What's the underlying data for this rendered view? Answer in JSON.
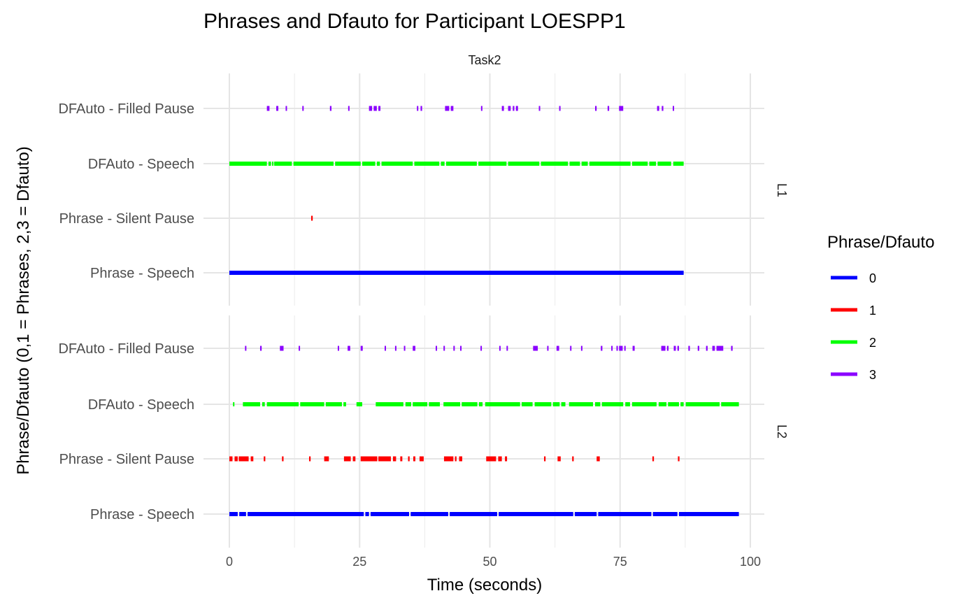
{
  "chart_data": {
    "type": "scatter",
    "title": "Phrases and Dfauto for Participant LOESPP1",
    "strip_label": "Task2",
    "xlabel": "Time (seconds)",
    "ylabel": "Phrase/Dfauto (0,1 = Phrases, 2,3 = Dfauto)",
    "xlim": [
      0,
      100
    ],
    "x_ticks": [
      0,
      25,
      50,
      75,
      100
    ],
    "categories": [
      "DFAuto - Filled Pause",
      "DFAuto - Speech",
      "Phrase - Silent Pause",
      "Phrase - Speech"
    ],
    "grid": true,
    "legend": {
      "title": "Phrase/Dfauto",
      "position": "right",
      "entries": [
        {
          "label": "0",
          "color": "#0000ff"
        },
        {
          "label": "1",
          "color": "#ff0000"
        },
        {
          "label": "2",
          "color": "#00ff00"
        },
        {
          "label": "3",
          "color": "#8b00ff"
        }
      ]
    },
    "facets": [
      {
        "label": "L1",
        "series": [
          {
            "category": "DFAuto - Filled Pause",
            "code": "3",
            "segments": [
              [
                7.2,
                7.7
              ],
              [
                9.0,
                9.4
              ],
              [
                10.8,
                11.0
              ],
              [
                14.0,
                14.2
              ],
              [
                19.3,
                19.6
              ],
              [
                22.8,
                23.0
              ],
              [
                26.8,
                27.4
              ],
              [
                27.7,
                28.3
              ],
              [
                28.6,
                29.0
              ],
              [
                36.0,
                36.2
              ],
              [
                36.7,
                37.0
              ],
              [
                41.4,
                42.2
              ],
              [
                42.5,
                43.0
              ],
              [
                48.3,
                48.5
              ],
              [
                52.3,
                52.7
              ],
              [
                53.5,
                54.0
              ],
              [
                54.4,
                54.7
              ],
              [
                55.0,
                55.4
              ],
              [
                59.4,
                59.6
              ],
              [
                63.3,
                63.5
              ],
              [
                70.2,
                70.5
              ],
              [
                72.6,
                72.9
              ],
              [
                74.8,
                75.6
              ],
              [
                82.1,
                82.5
              ],
              [
                83.0,
                83.3
              ],
              [
                85.1,
                85.3
              ]
            ]
          },
          {
            "category": "DFAuto - Speech",
            "code": "2",
            "segments": [
              [
                0,
                7.2
              ],
              [
                7.5,
                8.0
              ],
              [
                8.2,
                8.4
              ],
              [
                8.6,
                12.0
              ],
              [
                12.3,
                20.0
              ],
              [
                20.3,
                25.2
              ],
              [
                25.5,
                28.0
              ],
              [
                28.3,
                28.9
              ],
              [
                29.2,
                35.2
              ],
              [
                35.5,
                40.3
              ],
              [
                40.6,
                41.3
              ],
              [
                41.6,
                47.5
              ],
              [
                47.8,
                53.2
              ],
              [
                53.5,
                59.5
              ],
              [
                59.8,
                65.0
              ],
              [
                65.3,
                67.3
              ],
              [
                67.6,
                68.8
              ],
              [
                69.1,
                77.0
              ],
              [
                77.3,
                80.3
              ],
              [
                80.6,
                81.9
              ],
              [
                82.2,
                84.8
              ],
              [
                85.2,
                87.2
              ]
            ]
          },
          {
            "category": "Phrase - Silent Pause",
            "code": "1",
            "segments": [
              [
                15.7,
                16.0
              ]
            ]
          },
          {
            "category": "Phrase - Speech",
            "code": "0",
            "segments": [
              [
                0,
                87.2
              ]
            ]
          }
        ]
      },
      {
        "label": "L2",
        "series": [
          {
            "category": "DFAuto - Filled Pause",
            "code": "3",
            "segments": [
              [
                3.0,
                3.2
              ],
              [
                5.9,
                6.2
              ],
              [
                9.7,
                10.4
              ],
              [
                13.3,
                13.5
              ],
              [
                20.8,
                21.0
              ],
              [
                22.7,
                23.2
              ],
              [
                25.2,
                25.6
              ],
              [
                29.8,
                30.0
              ],
              [
                31.8,
                32.0
              ],
              [
                33.5,
                33.7
              ],
              [
                35.2,
                35.7
              ],
              [
                39.6,
                39.8
              ],
              [
                41.1,
                41.3
              ],
              [
                43.0,
                43.2
              ],
              [
                44.3,
                44.5
              ],
              [
                48.2,
                48.4
              ],
              [
                51.8,
                52.0
              ],
              [
                53.2,
                53.4
              ],
              [
                58.3,
                59.2
              ],
              [
                61.0,
                61.2
              ],
              [
                62.8,
                63.3
              ],
              [
                65.4,
                65.6
              ],
              [
                67.5,
                67.7
              ],
              [
                71.3,
                71.6
              ],
              [
                73.3,
                73.5
              ],
              [
                74.3,
                74.5
              ],
              [
                74.8,
                75.5
              ],
              [
                75.8,
                76.0
              ],
              [
                77.4,
                77.8
              ],
              [
                82.9,
                83.7
              ],
              [
                84.0,
                84.3
              ],
              [
                85.3,
                85.7
              ],
              [
                86.0,
                86.3
              ],
              [
                88.1,
                88.4
              ],
              [
                89.9,
                90.2
              ],
              [
                91.5,
                91.8
              ],
              [
                92.7,
                93.2
              ],
              [
                93.5,
                94.8
              ],
              [
                96.3,
                96.6
              ]
            ]
          },
          {
            "category": "DFAuto - Speech",
            "code": "2",
            "segments": [
              [
                0.7,
                0.9
              ],
              [
                2.6,
                5.9
              ],
              [
                6.3,
                6.8
              ],
              [
                7.2,
                13.3
              ],
              [
                13.6,
                18.2
              ],
              [
                18.5,
                21.6
              ],
              [
                21.9,
                22.4
              ],
              [
                24.4,
                25.5
              ],
              [
                28.1,
                33.4
              ],
              [
                33.8,
                34.9
              ],
              [
                35.2,
                38.0
              ],
              [
                38.3,
                40.4
              ],
              [
                41.1,
                44.3
              ],
              [
                44.6,
                47.6
              ],
              [
                47.9,
                48.6
              ],
              [
                49.1,
                55.8
              ],
              [
                56.1,
                58.2
              ],
              [
                58.6,
                61.8
              ],
              [
                62.1,
                63.4
              ],
              [
                63.7,
                64.5
              ],
              [
                65.2,
                69.8
              ],
              [
                70.2,
                71.2
              ],
              [
                71.5,
                75.6
              ],
              [
                76.0,
                76.9
              ],
              [
                77.3,
                82.0
              ],
              [
                82.4,
                83.9
              ],
              [
                84.2,
                86.3
              ],
              [
                86.6,
                87.2
              ],
              [
                87.6,
                94.1
              ],
              [
                94.4,
                97.8
              ]
            ]
          },
          {
            "category": "Phrase - Silent Pause",
            "code": "1",
            "segments": [
              [
                0,
                0.6
              ],
              [
                1.0,
                1.6
              ],
              [
                1.8,
                3.7
              ],
              [
                4.1,
                4.6
              ],
              [
                6.6,
                6.9
              ],
              [
                10.1,
                10.4
              ],
              [
                15.3,
                15.6
              ],
              [
                18.2,
                19.1
              ],
              [
                22.0,
                23.3
              ],
              [
                23.7,
                24.2
              ],
              [
                25.2,
                28.4
              ],
              [
                28.6,
                31.0
              ],
              [
                31.4,
                32.0
              ],
              [
                32.8,
                33.2
              ],
              [
                34.3,
                34.6
              ],
              [
                35.3,
                35.7
              ],
              [
                36.5,
                37.3
              ],
              [
                41.2,
                43.0
              ],
              [
                43.3,
                43.6
              ],
              [
                44.1,
                44.7
              ],
              [
                49.3,
                51.2
              ],
              [
                51.6,
                52.3
              ],
              [
                52.9,
                53.3
              ],
              [
                60.4,
                60.7
              ],
              [
                63.0,
                63.6
              ],
              [
                65.8,
                66.1
              ],
              [
                70.5,
                71.1
              ],
              [
                81.2,
                81.5
              ],
              [
                86.1,
                86.4
              ]
            ]
          },
          {
            "category": "Phrase - Speech",
            "code": "0",
            "segments": [
              [
                0,
                1.6
              ],
              [
                1.9,
                3.2
              ],
              [
                3.5,
                25.8
              ],
              [
                26.1,
                26.8
              ],
              [
                27.1,
                34.5
              ],
              [
                34.8,
                42.0
              ],
              [
                42.3,
                51.4
              ],
              [
                51.7,
                66.0
              ],
              [
                66.3,
                70.5
              ],
              [
                70.8,
                81.0
              ],
              [
                81.3,
                86.0
              ],
              [
                86.3,
                97.8
              ]
            ]
          }
        ]
      }
    ]
  }
}
